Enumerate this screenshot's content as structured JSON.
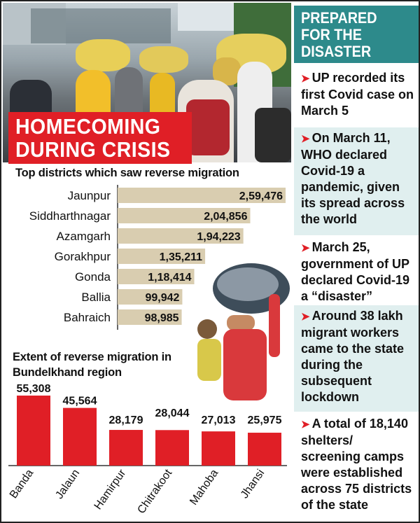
{
  "headline": {
    "line1": "HOMECOMING",
    "line2": "DURING CRISIS"
  },
  "sidebar": {
    "title": [
      "PREPARED",
      "FOR THE",
      "DISASTER"
    ],
    "facts": [
      "UP recorded its first Covid case on March 5",
      "On March 11, WHO declared Covid-19 a pandemic, given its spread across the world",
      "March 25, government of UP declared Covid-19 a “disaster”",
      "Around 38 lakh migrant workers came to the state during the subsequent lockdown",
      "A total of 18,140 shelters/ screening camps were established across 75 districts of the state"
    ]
  },
  "colors": {
    "headline_bg": "#e01f26",
    "sidebar_header_bg": "#2d8a8b",
    "sidebar_tint": "#e0efef",
    "hbar_fill": "#d9cdb0",
    "vbar_fill": "#e01f26",
    "arrow": "#e01f26"
  },
  "icons": {
    "fact_bullet": "arrow-right-icon"
  },
  "chart_data": [
    {
      "type": "bar",
      "orientation": "horizontal",
      "title": "Top districts which saw reverse migration",
      "categories": [
        "Jaunpur",
        "Siddharthnagar",
        "Azamgarh",
        "Gorakhpur",
        "Gonda",
        "Ballia",
        "Bahraich"
      ],
      "values": [
        259476,
        204856,
        194223,
        135211,
        118414,
        99942,
        98985
      ],
      "value_labels": [
        "2,59,476",
        "2,04,856",
        "1,94,223",
        "1,35,211",
        "1,18,414",
        "99,942",
        "98,985"
      ],
      "xlabel": "",
      "ylabel": "",
      "grid": false
    },
    {
      "type": "bar",
      "orientation": "vertical",
      "title": "Extent of reverse migration in Bundelkhand region",
      "categories": [
        "Banda",
        "Jalaun",
        "Hamirpur",
        "Chitrakoot",
        "Mahoba",
        "Jhansi"
      ],
      "values": [
        55308,
        45564,
        28179,
        28044,
        27013,
        25975
      ],
      "value_labels": [
        "55,308",
        "45,564",
        "28,179",
        "28,044",
        "27,013",
        "25,975"
      ],
      "xlabel": "",
      "ylabel": "",
      "grid": false
    }
  ]
}
